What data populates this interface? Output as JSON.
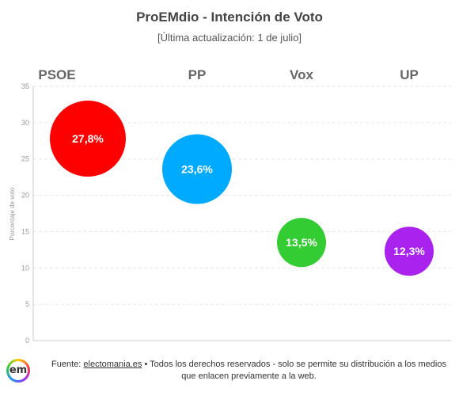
{
  "title": "ProEMdio - Intención de Voto",
  "subtitle": "[Última actualización: 1 de julio]",
  "chart_data": {
    "type": "scatter",
    "categories": [
      "PSOE",
      "PP",
      "Vox",
      "UP"
    ],
    "values": [
      27.8,
      23.6,
      13.5,
      12.3
    ],
    "value_labels": [
      "27,8%",
      "23,6%",
      "13,5%",
      "12,3%"
    ],
    "colors": [
      "#ff0000",
      "#00aaff",
      "#33cc33",
      "#aa22ee"
    ],
    "ylabel": "Porcentaje de voto",
    "ylim": [
      0,
      35
    ],
    "yticks": [
      "0",
      "5",
      "10",
      "15",
      "20",
      "25",
      "30",
      "35"
    ],
    "grid": true
  },
  "footer": {
    "source_prefix": "Fuente: ",
    "source_link": "electomania.es",
    "source_rest": " • Todos los derechos reservados - solo se permite su distribución a los medios que enlacen previamente a la web."
  },
  "logo": {
    "text": "em"
  }
}
